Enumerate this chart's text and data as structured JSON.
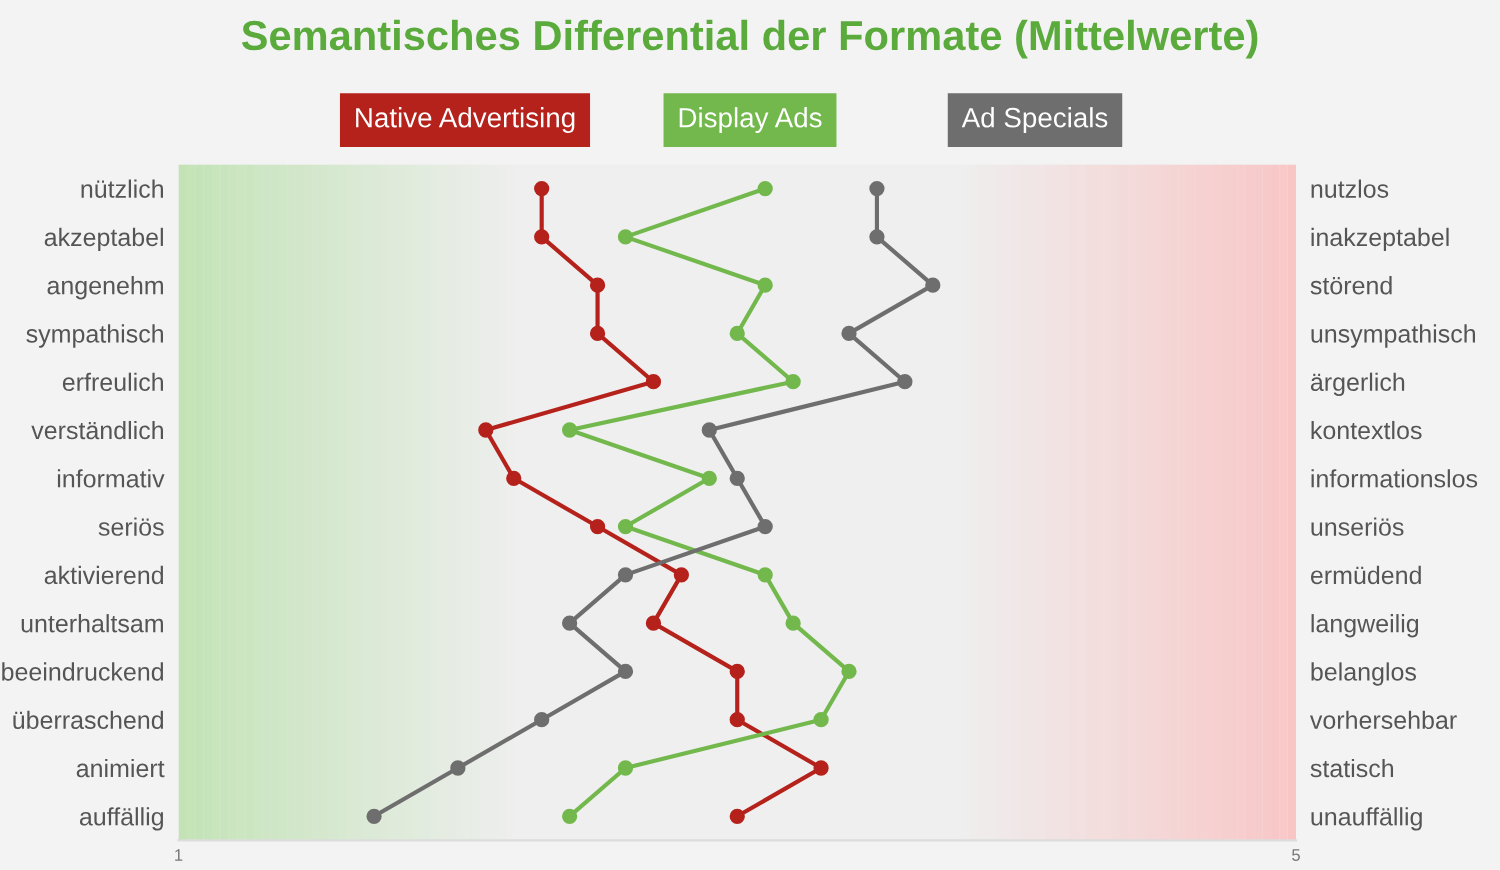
{
  "chart_data": {
    "type": "line",
    "orientation": "horizontal",
    "title": "Semantisches Differential der Formate (Mittelwerte)",
    "categories": [
      "nützlich",
      "akzeptabel",
      "angenehm",
      "sympathisch",
      "erfreulich",
      "verständlich",
      "informativ",
      "seriös",
      "aktivierend",
      "unterhaltsam",
      "beeindruckend",
      "überraschend",
      "animiert",
      "auffällig"
    ],
    "y2_categories": [
      "nutzlos",
      "inakzeptabel",
      "störend",
      "unsympathisch",
      "ärgerlich",
      "kontextlos",
      "informationslos",
      "unseriös",
      "ermüdend",
      "langweilig",
      "belanglos",
      "vorhersehbar",
      "statisch",
      "unauffällig"
    ],
    "xlim": [
      1,
      5
    ],
    "xticks": [
      1,
      5
    ],
    "marker": "circle",
    "legend": "top",
    "grid": false,
    "series": [
      {
        "name": "Native Advertising",
        "color": "#b5221b",
        "values": [
          2.3,
          2.3,
          2.5,
          2.5,
          2.7,
          2.1,
          2.2,
          2.5,
          2.8,
          2.7,
          3.0,
          3.0,
          3.3,
          3.0
        ]
      },
      {
        "name": "Display Ads",
        "color": "#72b84c",
        "values": [
          3.1,
          2.6,
          3.1,
          3.0,
          3.2,
          2.4,
          2.9,
          2.6,
          3.1,
          3.2,
          3.4,
          3.3,
          2.6,
          2.4
        ]
      },
      {
        "name": "Ad Specials",
        "color": "#6e6e6e",
        "values": [
          3.5,
          3.5,
          3.7,
          3.4,
          3.6,
          2.9,
          3.0,
          3.1,
          2.6,
          2.4,
          2.6,
          2.3,
          2.0,
          1.7
        ]
      }
    ]
  }
}
